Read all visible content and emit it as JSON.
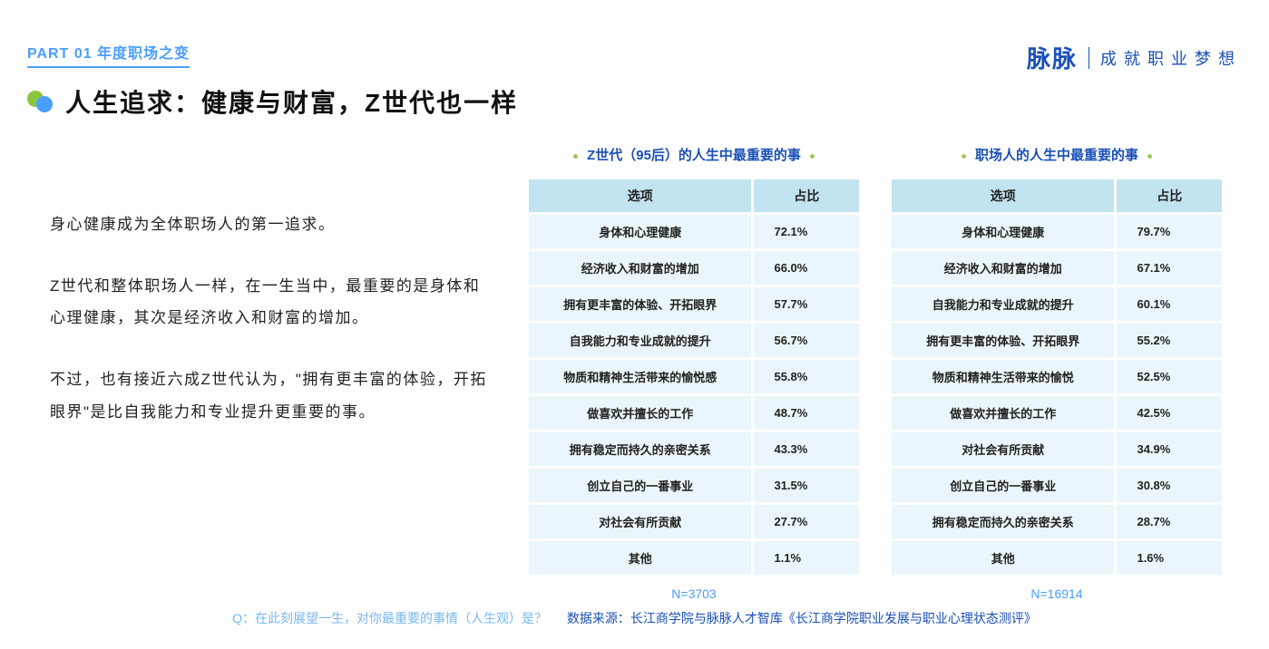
{
  "header": {
    "part": "PART 01 年度职场之变",
    "brand_logo": "脉脉",
    "brand_tag": "成就职业梦想"
  },
  "title": "人生追求：健康与财富，Z世代也一样",
  "body": {
    "p1": "身心健康成为全体职场人的第一追求。",
    "p2": "Z世代和整体职场人一样，在一生当中，最重要的是身体和心理健康，其次是经济收入和财富的增加。",
    "p3": "不过，也有接近六成Z世代认为，\"拥有更丰富的体验，开拓眼界\"是比自我能力和专业提升更重要的事。"
  },
  "tables": {
    "headers": {
      "option": "选项",
      "ratio": "占比"
    },
    "left": {
      "title": "Z世代（95后）的人生中最重要的事",
      "n_label": "N=3703",
      "rows": [
        {
          "option": "身体和心理健康",
          "pct": "72.1%"
        },
        {
          "option": "经济收入和财富的增加",
          "pct": "66.0%"
        },
        {
          "option": "拥有更丰富的体验、开拓眼界",
          "pct": "57.7%"
        },
        {
          "option": "自我能力和专业成就的提升",
          "pct": "56.7%"
        },
        {
          "option": "物质和精神生活带来的愉悦感",
          "pct": "55.8%"
        },
        {
          "option": "做喜欢并擅长的工作",
          "pct": "48.7%"
        },
        {
          "option": "拥有稳定而持久的亲密关系",
          "pct": "43.3%"
        },
        {
          "option": "创立自己的一番事业",
          "pct": "31.5%"
        },
        {
          "option": "对社会有所贡献",
          "pct": "27.7%"
        },
        {
          "option": "其他",
          "pct": "1.1%"
        }
      ]
    },
    "right": {
      "title": "职场人的人生中最重要的事",
      "n_label": "N=16914",
      "rows": [
        {
          "option": "身体和心理健康",
          "pct": "79.7%"
        },
        {
          "option": "经济收入和财富的增加",
          "pct": "67.1%"
        },
        {
          "option": "自我能力和专业成就的提升",
          "pct": "60.1%"
        },
        {
          "option": "拥有更丰富的体验、开拓眼界",
          "pct": "55.2%"
        },
        {
          "option": "物质和精神生活带来的愉悦",
          "pct": "52.5%"
        },
        {
          "option": "做喜欢并擅长的工作",
          "pct": "42.5%"
        },
        {
          "option": "对社会有所贡献",
          "pct": "34.9%"
        },
        {
          "option": "创立自己的一番事业",
          "pct": "30.8%"
        },
        {
          "option": "拥有稳定而持久的亲密关系",
          "pct": "28.7%"
        },
        {
          "option": "其他",
          "pct": "1.6%"
        }
      ]
    },
    "style": {
      "header_bg": "#c2e3f0",
      "cell_bg": "#eaf6fb",
      "border_spacing": 3,
      "font_size_header": 14,
      "font_size_cell": 13
    }
  },
  "footer": {
    "question": "Q：在此刻展望一生，对你最重要的事情（人生观）是？",
    "source": "数据来源：长江商学院与脉脉人才智库《长江商学院职业发展与职业心理状态测评》"
  },
  "colors": {
    "accent_blue": "#4a9eff",
    "brand_blue": "#1a50b8",
    "bullet_green": "#8cc63e",
    "dot_green": "#a4c95b",
    "text": "#222222",
    "background": "#ffffff"
  }
}
